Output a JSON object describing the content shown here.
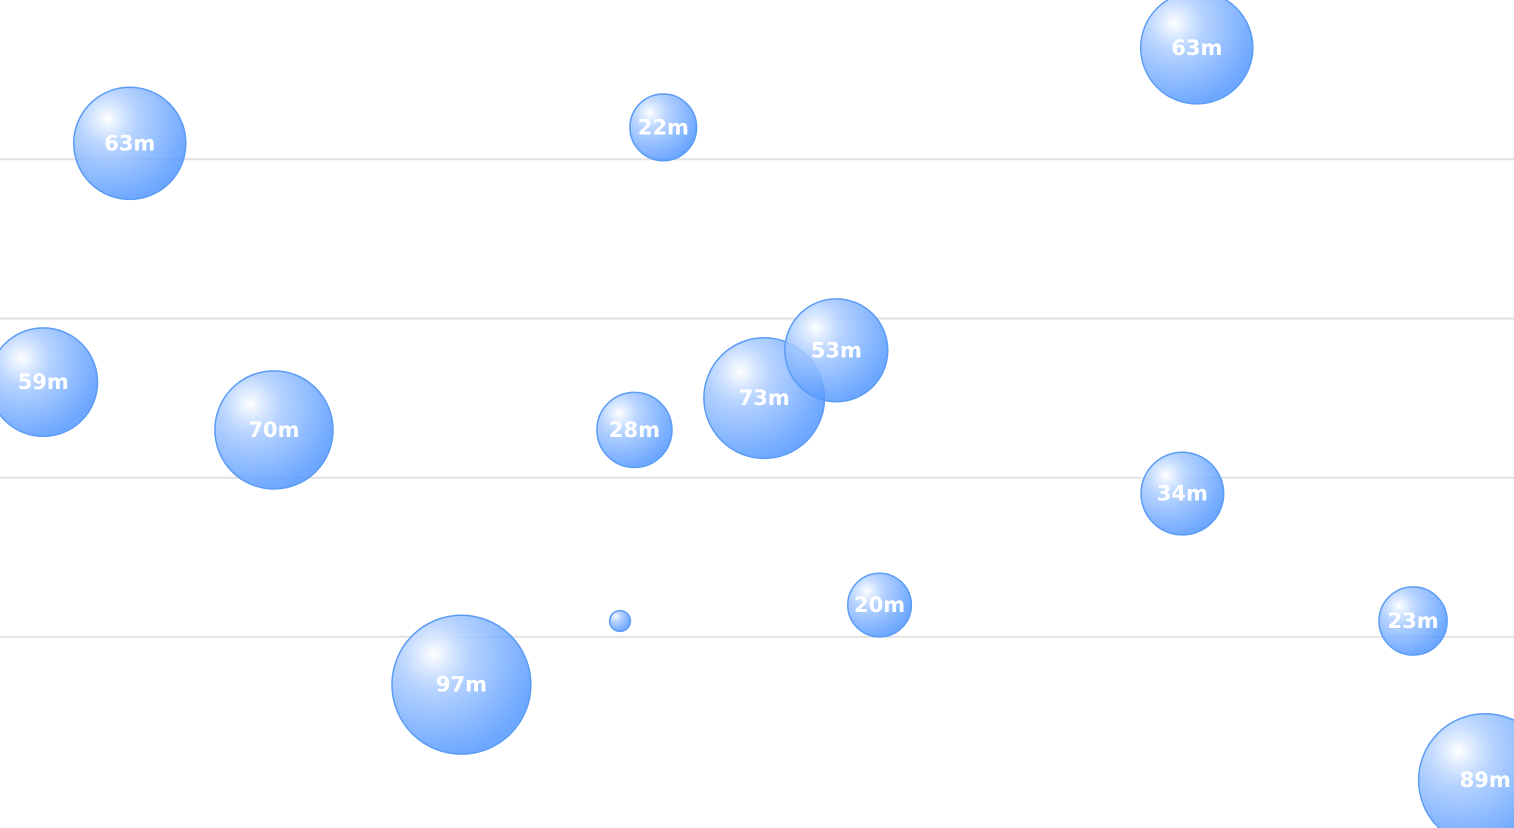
{
  "chart_data": {
    "type": "bubble",
    "title": "",
    "xlabel": "",
    "ylabel": "",
    "grid": "horizontal",
    "color": "#4d94ff",
    "value_suffix": "m",
    "points": [
      {
        "label": "63m",
        "value": 63,
        "x": 0.9,
        "y": 8.1
      },
      {
        "label": "22m",
        "value": 22,
        "x": 4.6,
        "y": 8.2
      },
      {
        "label": "63m",
        "value": 63,
        "x": 8.3,
        "y": 8.7
      },
      {
        "label": "59m",
        "value": 59,
        "x": 0.3,
        "y": 6.6
      },
      {
        "label": "70m",
        "value": 70,
        "x": 1.9,
        "y": 6.3
      },
      {
        "label": "28m",
        "value": 28,
        "x": 4.4,
        "y": 6.3
      },
      {
        "label": "73m",
        "value": 73,
        "x": 5.3,
        "y": 6.5
      },
      {
        "label": "53m",
        "value": 53,
        "x": 5.8,
        "y": 6.8
      },
      {
        "label": "34m",
        "value": 34,
        "x": 8.2,
        "y": 5.9
      },
      {
        "label": "97m",
        "value": 97,
        "x": 3.2,
        "y": 4.7
      },
      {
        "label": "",
        "value": 2,
        "x": 4.3,
        "y": 5.1
      },
      {
        "label": "20m",
        "value": 20,
        "x": 6.1,
        "y": 5.2
      },
      {
        "label": "23m",
        "value": 23,
        "x": 9.8,
        "y": 5.1
      },
      {
        "label": "89m",
        "value": 89,
        "x": 10.3,
        "y": 4.1
      }
    ],
    "gridlines_y": [
      8,
      7,
      6,
      5
    ],
    "xlim": [
      0,
      10.5
    ],
    "ylim": [
      3.8,
      9.0
    ]
  }
}
